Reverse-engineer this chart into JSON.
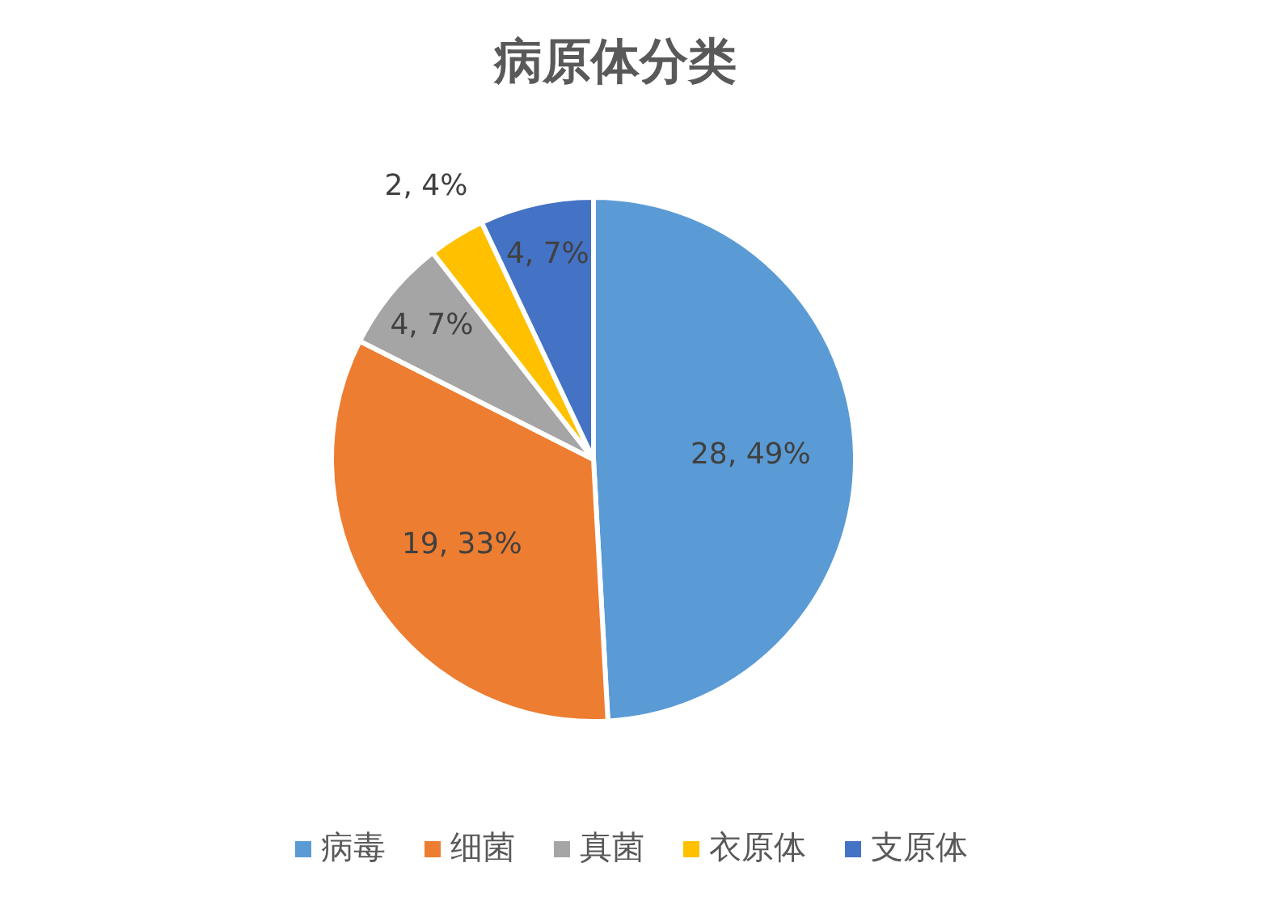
{
  "chart_data": {
    "type": "pie",
    "title": "病原体分类",
    "categories": [
      "病毒",
      "细菌",
      "真菌",
      "衣原体",
      "支原体"
    ],
    "values": [
      28,
      19,
      4,
      2,
      4
    ],
    "colors": [
      "#5b9bd5",
      "#ed7d31",
      "#a5a5a5",
      "#ffc000",
      "#4472c4"
    ],
    "value_labels": [
      "28, 49%",
      "19, 33%",
      "4, 7%",
      "2, 4%",
      "4, 7%"
    ],
    "legend": "bottom"
  }
}
